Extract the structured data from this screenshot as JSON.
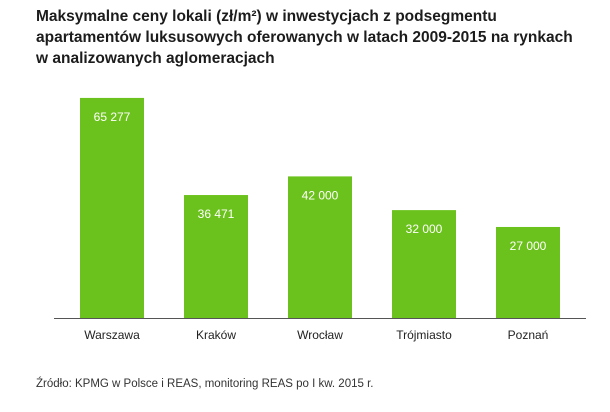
{
  "chart_data": {
    "type": "bar",
    "title_lines": [
      "Maksymalne ceny lokali (zł/m²) w inwestycjach z podsegmentu",
      "apartamentów luksusowych oferowanych w latach 2009-2015 na rynkach",
      "w analizowanych aglomeracjach"
    ],
    "categories": [
      "Warszawa",
      "Kraków",
      "Wrocław",
      "Trójmiasto",
      "Poznań"
    ],
    "values": [
      65277,
      36471,
      42000,
      32000,
      27000
    ],
    "value_labels": [
      "65 277",
      "36 471",
      "42 000",
      "32 000",
      "27 000"
    ],
    "ylim": [
      0,
      70000
    ],
    "grid": false,
    "bar_color": "#6cc21c",
    "label_color": "#ffffff"
  },
  "source": "Źródło: KPMG w Polsce i REAS, monitoring REAS po I kw. 2015 r."
}
